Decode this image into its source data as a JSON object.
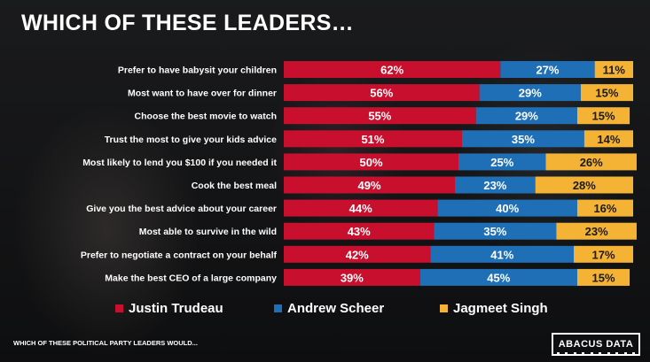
{
  "title": "WHICH OF THESE LEADERS…",
  "footnote": "WHICH OF THESE POLITICAL PARTY LEADERS WOULD...",
  "logo_text": "ABACUS DATA",
  "colors": {
    "trudeau": "#c8102e",
    "scheer": "#1f6fb7",
    "singh": "#f5b335"
  },
  "legend": [
    {
      "label": "Justin Trudeau",
      "color": "#c8102e"
    },
    {
      "label": "Andrew Scheer",
      "color": "#1f6fb7"
    },
    {
      "label": "Jagmeet Singh",
      "color": "#f5b335"
    }
  ],
  "chart_data": {
    "type": "bar",
    "stacked": true,
    "orientation": "horizontal",
    "categories": [
      "Prefer to have babysit your children",
      "Most want to have over for dinner",
      "Choose the best movie to watch",
      "Trust the most to give your kids advice",
      "Most likely to lend you $100 if you needed it",
      "Cook the best meal",
      "Give you the best advice about your career",
      "Most able to survive in the wild",
      "Prefer to negotiate a contract on your behalf",
      "Make the best CEO of a large company"
    ],
    "series": [
      {
        "name": "Justin Trudeau",
        "values": [
          62,
          56,
          55,
          51,
          50,
          49,
          44,
          43,
          42,
          39
        ]
      },
      {
        "name": "Andrew Scheer",
        "values": [
          27,
          29,
          29,
          35,
          25,
          23,
          40,
          35,
          41,
          45
        ]
      },
      {
        "name": "Jagmeet Singh",
        "values": [
          11,
          15,
          15,
          14,
          26,
          28,
          16,
          23,
          17,
          15
        ]
      }
    ],
    "value_suffix": "%",
    "xlim": [
      0,
      100
    ],
    "legend_position": "bottom"
  }
}
